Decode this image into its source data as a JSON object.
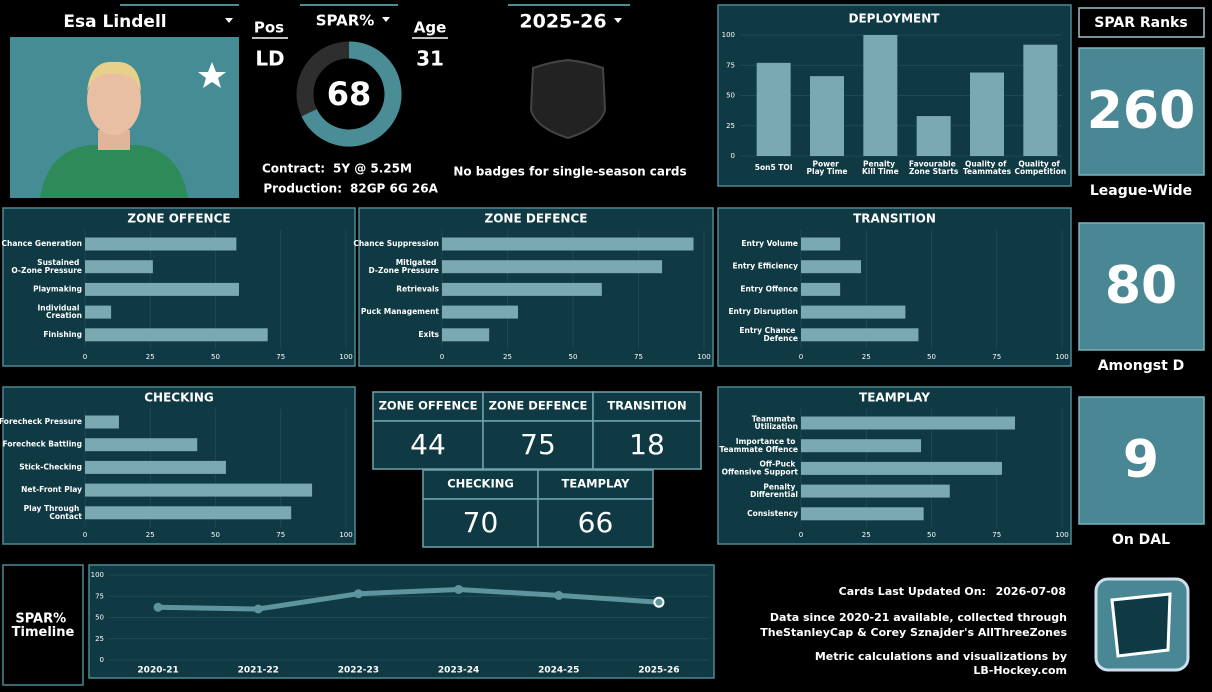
{
  "header": {
    "player": "Esa Lindell",
    "pos_label": "Pos",
    "pos": "LD",
    "age_label": "Age",
    "age": 31,
    "season": "2025-26",
    "contract_label": "Contract:",
    "contract": "5Y @ 5.25M",
    "production_label": "Production:",
    "production": "82GP 6G 26A",
    "badges": "No badges for single-season cards"
  },
  "chart_data": [
    {
      "type": "gauge",
      "title": "SPAR%",
      "values": [
        68
      ],
      "ylim": [
        0,
        100
      ],
      "color": "#4a8d96"
    },
    {
      "type": "bar",
      "title": "DEPLOYMENT",
      "categories": [
        "5on5 TOI",
        "Power Play Time",
        "Penalty Kill Time",
        "Favourable Zone Starts",
        "Quality of Teammates",
        "Quality of Competition"
      ],
      "values": [
        77,
        66,
        100,
        33,
        69,
        92
      ],
      "ylim": [
        0,
        100
      ],
      "yticks": [
        0,
        25,
        50,
        75,
        100
      ],
      "color": "#7aa9b1",
      "grid": true
    },
    {
      "type": "barh",
      "title": "ZONE OFFENCE",
      "categories": [
        "Chance Generation",
        "Sustained O-Zone Pressure",
        "Playmaking",
        "Individual Creation",
        "Finishing"
      ],
      "values": [
        58,
        26,
        59,
        10,
        70
      ],
      "xlim": [
        0,
        100
      ],
      "xticks": [
        0,
        25,
        50,
        75,
        100
      ],
      "color": "#7aa9b1",
      "grid": true
    },
    {
      "type": "barh",
      "title": "ZONE DEFENCE",
      "categories": [
        "Chance Suppression",
        "Mitigated D-Zone Pressure",
        "Retrievals",
        "Puck Management",
        "Exits"
      ],
      "values": [
        96,
        84,
        61,
        29,
        18
      ],
      "xlim": [
        0,
        100
      ],
      "xticks": [
        0,
        25,
        50,
        75,
        100
      ],
      "color": "#7aa9b1",
      "grid": true
    },
    {
      "type": "barh",
      "title": "TRANSITION",
      "categories": [
        "Entry Volume",
        "Entry Efficiency",
        "Entry Offence",
        "Entry Disruption",
        "Entry Chance Defence"
      ],
      "values": [
        15,
        23,
        15,
        40,
        45
      ],
      "xlim": [
        0,
        100
      ],
      "xticks": [
        0,
        25,
        50,
        75,
        100
      ],
      "color": "#7aa9b1",
      "grid": true
    },
    {
      "type": "barh",
      "title": "CHECKING",
      "categories": [
        "Forecheck Pressure",
        "Forecheck Battling",
        "Stick-Checking",
        "Net-Front Play",
        "Play Through Contact"
      ],
      "values": [
        13,
        43,
        54,
        87,
        79
      ],
      "xlim": [
        0,
        100
      ],
      "xticks": [
        0,
        25,
        50,
        75,
        100
      ],
      "color": "#7aa9b1",
      "grid": true
    },
    {
      "type": "barh",
      "title": "TEAMPLAY",
      "categories": [
        "Teammate Utilization",
        "Importance to Teammate Offence",
        "Off-Puck Offensive Support",
        "Penalty Differential",
        "Consistency"
      ],
      "values": [
        82,
        46,
        77,
        57,
        47
      ],
      "xlim": [
        0,
        100
      ],
      "xticks": [
        0,
        25,
        50,
        75,
        100
      ],
      "color": "#7aa9b1",
      "grid": true
    },
    {
      "type": "line",
      "categories": [
        "2020-21",
        "2021-22",
        "2022-23",
        "2023-24",
        "2024-25",
        "2025-26"
      ],
      "values": [
        62,
        60,
        78,
        83,
        76,
        68
      ],
      "ylim": [
        0,
        100
      ],
      "yticks": [
        0,
        25,
        50,
        75,
        100
      ],
      "color": "#5e949d",
      "grid": true
    }
  ],
  "scores": {
    "headers": [
      "ZONE OFFENCE",
      "ZONE DEFENCE",
      "TRANSITION",
      "CHECKING",
      "TEAMPLAY"
    ],
    "values": [
      44,
      75,
      18,
      70,
      66
    ]
  },
  "ranks": {
    "title": "SPAR Ranks",
    "items": [
      {
        "value": 260,
        "label": "League-Wide"
      },
      {
        "value": 80,
        "label": "Amongst D"
      },
      {
        "value": 9,
        "label": "On DAL"
      }
    ]
  },
  "timeline_label": "SPAR% Timeline",
  "footer": {
    "updated_label": "Cards Last Updated On:",
    "updated": "2026-07-08",
    "source": [
      "Data since 2020-21 available, collected through",
      "TheStanleyCap & Corey Sznajder's AllThreeZones"
    ],
    "credit": [
      "Metric calculations and visualizations by",
      "LB-Hockey.com"
    ]
  }
}
